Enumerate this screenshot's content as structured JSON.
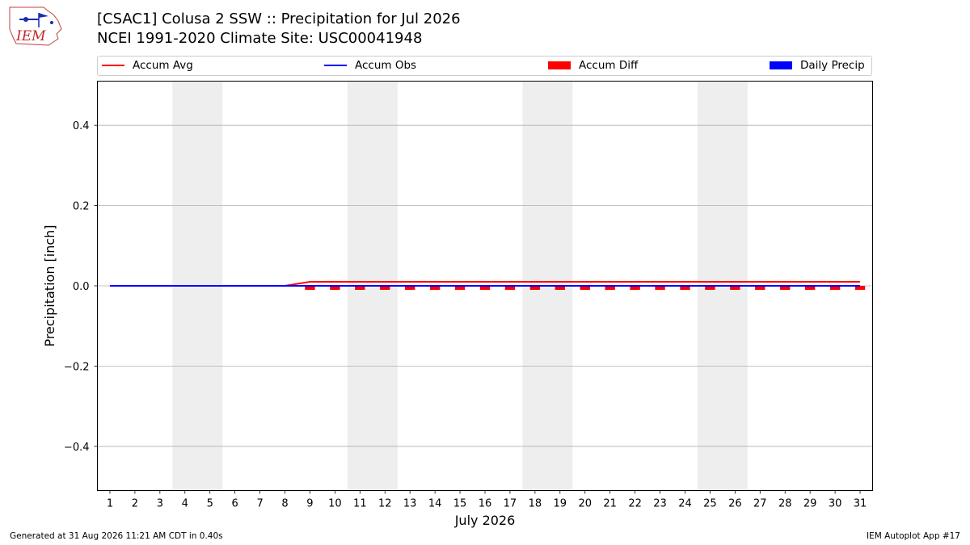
{
  "header": {
    "title": "[CSAC1] Colusa 2 SSW :: Precipitation for Jul 2026",
    "subtitle": "NCEI 1991-2020 Climate Site: USC00041948",
    "logo_icon": "iem-logo-icon",
    "logo_text": "IEM"
  },
  "legend": {
    "placement": "top",
    "items": [
      {
        "label": "Accum Avg",
        "kind": "line",
        "color": "#ff0000"
      },
      {
        "label": "Accum Obs",
        "kind": "line",
        "color": "#0000ff"
      },
      {
        "label": "Accum Diff",
        "kind": "patch",
        "color": "#ff0000"
      },
      {
        "label": "Daily Precip",
        "kind": "patch",
        "color": "#0000ff"
      }
    ]
  },
  "footer": {
    "left": "Generated at 31 Aug 2026 11:21 AM CDT in 0.40s",
    "right": "IEM Autoplot App #17"
  },
  "chart_data": {
    "type": "line",
    "xlabel": "July 2026",
    "ylabel": "Precipitation [inch]",
    "xlim": [
      0.5,
      31.5
    ],
    "ylim": [
      -0.51,
      0.51
    ],
    "y_ticks": [
      -0.4,
      -0.2,
      0.0,
      0.2,
      0.4
    ],
    "x_ticks": [
      1,
      2,
      3,
      4,
      5,
      6,
      7,
      8,
      9,
      10,
      11,
      12,
      13,
      14,
      15,
      16,
      17,
      18,
      19,
      20,
      21,
      22,
      23,
      24,
      25,
      26,
      27,
      28,
      29,
      30,
      31
    ],
    "grid": "y",
    "weekend_shading": [
      [
        4,
        5
      ],
      [
        11,
        12
      ],
      [
        18,
        19
      ],
      [
        25,
        26
      ]
    ],
    "colors": {
      "avg": "#ff0000",
      "obs": "#0000ff",
      "diff": "#ff0000",
      "daily": "#0000ff",
      "weekend": "#eeeeee"
    },
    "days": [
      1,
      2,
      3,
      4,
      5,
      6,
      7,
      8,
      9,
      10,
      11,
      12,
      13,
      14,
      15,
      16,
      17,
      18,
      19,
      20,
      21,
      22,
      23,
      24,
      25,
      26,
      27,
      28,
      29,
      30,
      31
    ],
    "series": [
      {
        "name": "Accum Avg",
        "kind": "line",
        "values": [
          0,
          0,
          0,
          0,
          0,
          0,
          0,
          0,
          0.01,
          0.01,
          0.01,
          0.01,
          0.01,
          0.01,
          0.01,
          0.01,
          0.01,
          0.01,
          0.01,
          0.01,
          0.01,
          0.01,
          0.01,
          0.01,
          0.01,
          0.01,
          0.01,
          0.01,
          0.01,
          0.01,
          0.01
        ]
      },
      {
        "name": "Accum Obs",
        "kind": "line",
        "values": [
          0,
          0,
          0,
          0,
          0,
          0,
          0,
          0,
          0,
          0,
          0,
          0,
          0,
          0,
          0,
          0,
          0,
          0,
          0,
          0,
          0,
          0,
          0,
          0,
          0,
          0,
          0,
          0,
          0,
          0,
          0
        ]
      },
      {
        "name": "Accum Diff",
        "kind": "bar",
        "values": [
          0,
          0,
          0,
          0,
          0,
          0,
          0,
          0,
          -0.01,
          -0.01,
          -0.01,
          -0.01,
          -0.01,
          -0.01,
          -0.01,
          -0.01,
          -0.01,
          -0.01,
          -0.01,
          -0.01,
          -0.01,
          -0.01,
          -0.01,
          -0.01,
          -0.01,
          -0.01,
          -0.01,
          -0.01,
          -0.01,
          -0.01,
          -0.01
        ]
      },
      {
        "name": "Daily Precip",
        "kind": "bar",
        "values": [
          0,
          0,
          0,
          0,
          0,
          0,
          0,
          0,
          0,
          0,
          0,
          0,
          0,
          0,
          0,
          0,
          0,
          0,
          0,
          0,
          0,
          0,
          0,
          0,
          0,
          0,
          0,
          0,
          0,
          0,
          0
        ]
      }
    ]
  }
}
